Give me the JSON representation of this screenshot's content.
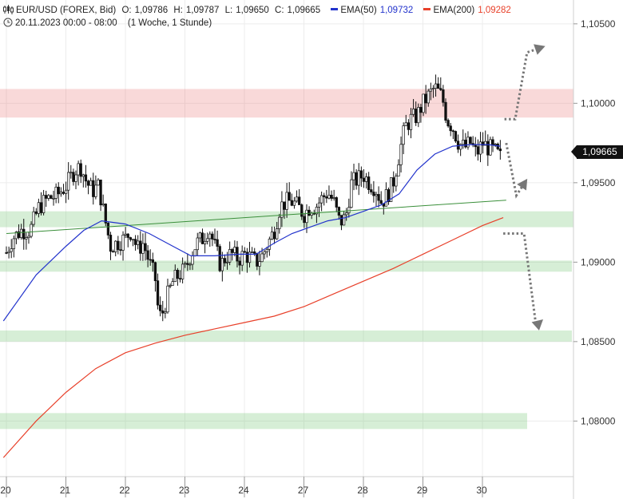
{
  "header": {
    "symbol": "EUR/USD (FOREX, Bid)",
    "open_label": "O:",
    "open": "1,09786",
    "high_label": "H:",
    "high": "1,09787",
    "low_label": "L:",
    "low": "1,09650",
    "close_label": "C:",
    "close": "1,09665",
    "ema50_label": "EMA(50)",
    "ema50": "1,09732",
    "ema50_color": "#2233cc",
    "ema200_label": "EMA(200)",
    "ema200": "1,09282",
    "ema200_color": "#e8402a",
    "date_range": "20.11.2023 00:00 - 08:00",
    "interval": "(1 Woche, 1 Stunde)",
    "chart_icon": "candlestick-icon",
    "clock_icon": "clock-icon"
  },
  "current_price": "1,09665",
  "chart_data": {
    "type": "candlestick",
    "x_ticks": [
      "20",
      "21",
      "22",
      "23",
      "24",
      "27",
      "28",
      "29",
      "30"
    ],
    "y_ticks": [
      "1,10500",
      "1,10000",
      "1,09500",
      "1,09000",
      "1,08500",
      "1,08000"
    ],
    "y_tick_values": [
      1.105,
      1.1,
      1.095,
      1.09,
      1.085,
      1.08
    ],
    "ylim": [
      1.0765,
      1.1065
    ],
    "grid": true,
    "zones_red": [
      [
        1.0991,
        1.1009
      ]
    ],
    "zones_green": [
      [
        1.0922,
        1.0932
      ],
      [
        1.0894,
        1.0901
      ],
      [
        1.085,
        1.0857
      ],
      [
        1.0795,
        1.0805
      ]
    ],
    "trendline": {
      "from": [
        0,
        1.0918
      ],
      "to": [
        8.4,
        1.0939
      ],
      "color": "#3a8f3a"
    },
    "ema_colors": {
      "ema50": "#2233cc",
      "ema200": "#e8402a"
    },
    "ema50": [
      [
        -0.05,
        1.0863
      ],
      [
        0.5,
        1.0892
      ],
      [
        1.0,
        1.091
      ],
      [
        1.3,
        1.092
      ],
      [
        1.6,
        1.0926
      ],
      [
        2.0,
        1.0924
      ],
      [
        2.4,
        1.0918
      ],
      [
        2.8,
        1.091
      ],
      [
        3.1,
        1.0904
      ],
      [
        3.5,
        1.0904
      ],
      [
        3.9,
        1.0905
      ],
      [
        4.2,
        1.0905
      ],
      [
        4.5,
        1.0912
      ],
      [
        4.8,
        1.0918
      ],
      [
        5.1,
        1.0922
      ],
      [
        5.4,
        1.0926
      ],
      [
        5.7,
        1.0928
      ],
      [
        6.0,
        1.0932
      ],
      [
        6.3,
        1.0936
      ],
      [
        6.6,
        1.0943
      ],
      [
        6.9,
        1.0958
      ],
      [
        7.2,
        1.0968
      ],
      [
        7.5,
        1.0973
      ],
      [
        7.8,
        1.0974
      ],
      [
        8.1,
        1.0974
      ],
      [
        8.3,
        1.0973
      ]
    ],
    "ema200": [
      [
        -0.05,
        1.0777
      ],
      [
        0.5,
        1.08
      ],
      [
        1.0,
        1.0818
      ],
      [
        1.5,
        1.0833
      ],
      [
        2.0,
        1.0843
      ],
      [
        2.5,
        1.0849
      ],
      [
        3.0,
        1.0854
      ],
      [
        3.5,
        1.0858
      ],
      [
        4.0,
        1.0862
      ],
      [
        4.5,
        1.0866
      ],
      [
        5.0,
        1.0872
      ],
      [
        5.5,
        1.088
      ],
      [
        6.0,
        1.0888
      ],
      [
        6.5,
        1.0896
      ],
      [
        7.0,
        1.0905
      ],
      [
        7.5,
        1.0914
      ],
      [
        8.0,
        1.0923
      ],
      [
        8.35,
        1.0928
      ]
    ],
    "close_path": [
      [
        0,
        1.0906
      ],
      [
        0.1,
        1.0915
      ],
      [
        0.25,
        1.092
      ],
      [
        0.4,
        1.092
      ],
      [
        0.55,
        1.0935
      ],
      [
        0.7,
        1.094
      ],
      [
        0.85,
        1.0942
      ],
      [
        1.0,
        1.0948
      ],
      [
        1.15,
        1.0958
      ],
      [
        1.25,
        1.096
      ],
      [
        1.35,
        1.095
      ],
      [
        1.45,
        1.0945
      ],
      [
        1.55,
        1.0948
      ],
      [
        1.65,
        1.0928
      ],
      [
        1.75,
        1.091
      ],
      [
        1.85,
        1.0912
      ],
      [
        2.0,
        1.0915
      ],
      [
        2.1,
        1.092
      ],
      [
        2.2,
        1.0908
      ],
      [
        2.3,
        1.0912
      ],
      [
        2.4,
        1.09
      ],
      [
        2.5,
        1.089
      ],
      [
        2.55,
        1.087
      ],
      [
        2.6,
        1.0865
      ],
      [
        2.7,
        1.0878
      ],
      [
        2.8,
        1.0888
      ],
      [
        2.9,
        1.0892
      ],
      [
        3.0,
        1.0895
      ],
      [
        3.1,
        1.0905
      ],
      [
        3.2,
        1.0912
      ],
      [
        3.3,
        1.0915
      ],
      [
        3.4,
        1.0922
      ],
      [
        3.5,
        1.091
      ],
      [
        3.6,
        1.0898
      ],
      [
        3.7,
        1.0904
      ],
      [
        3.8,
        1.0905
      ],
      [
        3.9,
        1.0902
      ],
      [
        4.0,
        1.0905
      ],
      [
        4.1,
        1.0903
      ],
      [
        4.2,
        1.09
      ],
      [
        4.3,
        1.0904
      ],
      [
        4.4,
        1.0912
      ],
      [
        4.5,
        1.092
      ],
      [
        4.6,
        1.0935
      ],
      [
        4.7,
        1.0938
      ],
      [
        4.8,
        1.0938
      ],
      [
        4.9,
        1.0935
      ],
      [
        5.0,
        1.093
      ],
      [
        5.1,
        1.0935
      ],
      [
        5.2,
        1.0935
      ],
      [
        5.3,
        1.094
      ],
      [
        5.4,
        1.0944
      ],
      [
        5.5,
        1.0938
      ],
      [
        5.6,
        1.0925
      ],
      [
        5.7,
        1.0928
      ],
      [
        5.8,
        1.095
      ],
      [
        5.9,
        1.0952
      ],
      [
        6.0,
        1.0955
      ],
      [
        6.1,
        1.095
      ],
      [
        6.2,
        1.0947
      ],
      [
        6.3,
        1.0938
      ],
      [
        6.4,
        1.0942
      ],
      [
        6.5,
        1.095
      ],
      [
        6.6,
        1.0968
      ],
      [
        6.7,
        1.0985
      ],
      [
        6.8,
        1.099
      ],
      [
        6.9,
        1.0992
      ],
      [
        7.0,
        1.1
      ],
      [
        7.1,
        1.1005
      ],
      [
        7.2,
        1.101
      ],
      [
        7.3,
        1.1005
      ],
      [
        7.35,
        1.1
      ],
      [
        7.4,
        1.099
      ],
      [
        7.5,
        1.0985
      ],
      [
        7.6,
        1.0975
      ],
      [
        7.7,
        1.0972
      ],
      [
        7.8,
        1.0975
      ],
      [
        7.9,
        1.0968
      ],
      [
        8.0,
        1.0975
      ],
      [
        8.1,
        1.0972
      ],
      [
        8.2,
        1.097
      ],
      [
        8.3,
        1.0966
      ]
    ],
    "projections": [
      [
        [
          8.37,
          1.099
        ],
        [
          8.55,
          1.099
        ],
        [
          8.75,
          1.1032
        ],
        [
          8.98,
          1.1035
        ]
      ],
      [
        [
          8.4,
          1.0975
        ],
        [
          8.57,
          1.0942
        ],
        [
          8.71,
          1.095
        ]
      ],
      [
        [
          8.35,
          1.0918
        ],
        [
          8.7,
          1.0918
        ],
        [
          8.9,
          1.086
        ],
        [
          8.96,
          1.0862
        ]
      ]
    ],
    "projection_color": "#777777"
  }
}
